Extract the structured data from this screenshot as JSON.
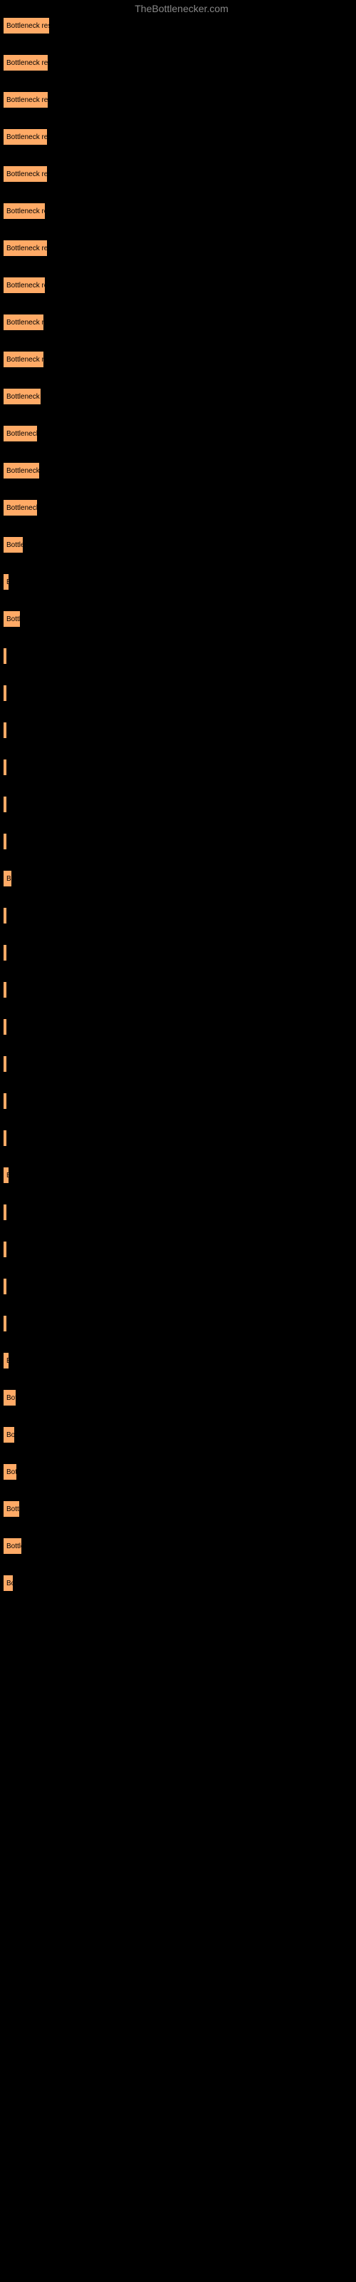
{
  "header": {
    "text": "TheBottlenecker.com"
  },
  "chart": {
    "type": "bar",
    "bar_color": "#ffaa66",
    "background_color": "#000000",
    "border_color": "#000000",
    "text_color": "#000000",
    "header_color": "#888888",
    "bars": [
      {
        "label": "Bottleneck rest",
        "width": 66
      },
      {
        "label": "Bottleneck rest",
        "width": 64
      },
      {
        "label": "Bottleneck rest",
        "width": 64
      },
      {
        "label": "Bottleneck rest",
        "width": 63
      },
      {
        "label": "Bottleneck rest",
        "width": 63
      },
      {
        "label": "Bottleneck re",
        "width": 60
      },
      {
        "label": "Bottleneck rest",
        "width": 63
      },
      {
        "label": "Bottleneck re",
        "width": 60
      },
      {
        "label": "Bottleneck re",
        "width": 58
      },
      {
        "label": "Bottleneck re",
        "width": 58
      },
      {
        "label": "Bottleneck r",
        "width": 54
      },
      {
        "label": "Bottleneck",
        "width": 49
      },
      {
        "label": "Bottleneck",
        "width": 52
      },
      {
        "label": "Bottleneck",
        "width": 49
      },
      {
        "label": "Bottler",
        "width": 29
      },
      {
        "label": "B",
        "width": 9
      },
      {
        "label": "Bottl",
        "width": 25
      },
      {
        "label": "",
        "width": 3
      },
      {
        "label": "",
        "width": 3
      },
      {
        "label": "",
        "width": 3
      },
      {
        "label": "",
        "width": 3
      },
      {
        "label": "",
        "width": 3
      },
      {
        "label": "",
        "width": 3
      },
      {
        "label": "B",
        "width": 13
      },
      {
        "label": "",
        "width": 3
      },
      {
        "label": "",
        "width": 3
      },
      {
        "label": "",
        "width": 3
      },
      {
        "label": "",
        "width": 3
      },
      {
        "label": "",
        "width": 3
      },
      {
        "label": "",
        "width": 3
      },
      {
        "label": "",
        "width": 3
      },
      {
        "label": "B",
        "width": 9
      },
      {
        "label": "",
        "width": 3
      },
      {
        "label": "",
        "width": 3
      },
      {
        "label": "",
        "width": 3
      },
      {
        "label": "",
        "width": 3
      },
      {
        "label": "B",
        "width": 9
      },
      {
        "label": "Bot",
        "width": 19
      },
      {
        "label": "Bo",
        "width": 17
      },
      {
        "label": "Bot",
        "width": 20
      },
      {
        "label": "Bott",
        "width": 24
      },
      {
        "label": "Bottle",
        "width": 27
      },
      {
        "label": "Bo",
        "width": 15
      }
    ]
  }
}
